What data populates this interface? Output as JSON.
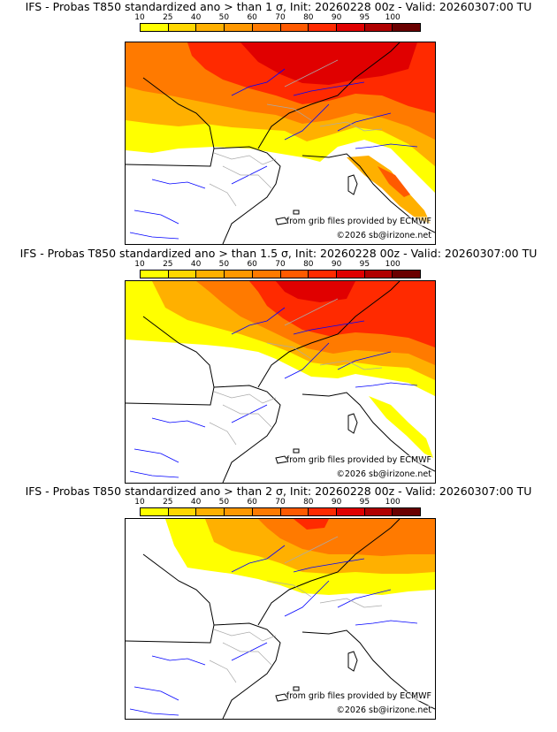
{
  "colorbar": {
    "ticks": [
      "10",
      "25",
      "40",
      "50",
      "60",
      "70",
      "80",
      "90",
      "95",
      "100"
    ],
    "colors": [
      "#ffff00",
      "#ffd700",
      "#ffb000",
      "#ff9800",
      "#ff7a00",
      "#ff5a00",
      "#ff2a00",
      "#e00000",
      "#b00000",
      "#6a0000"
    ]
  },
  "land_color": "#ffffff",
  "sea_color": "#ffffff",
  "coast_color": "#000000",
  "river_color": "#0000ff",
  "border_color": "#aaaaaa",
  "panels": [
    {
      "title": "IFS - Probas T850  standardized ano > than 1 σ, Init: 20260228 00z - Valid: 20260307:00 TU",
      "credit_source": "from grib files provided by ECMWF",
      "credit_copy": "©2026 sb@irizone.net",
      "probability_level": "high"
    },
    {
      "title": "IFS - Probas T850  standardized ano > than 1.5 σ, Init: 20260228 00z - Valid: 20260307:00 TU",
      "credit_source": "from grib files provided by ECMWF",
      "credit_copy": "©2026 sb@irizone.net",
      "probability_level": "medium"
    },
    {
      "title": "IFS - Probas T850  standardized ano > than 2 σ, Init: 20260228 00z - Valid: 20260307:00 TU",
      "credit_source": "from grib files provided by ECMWF",
      "credit_copy": "©2026 sb@irizone.net",
      "probability_level": "low"
    }
  ]
}
